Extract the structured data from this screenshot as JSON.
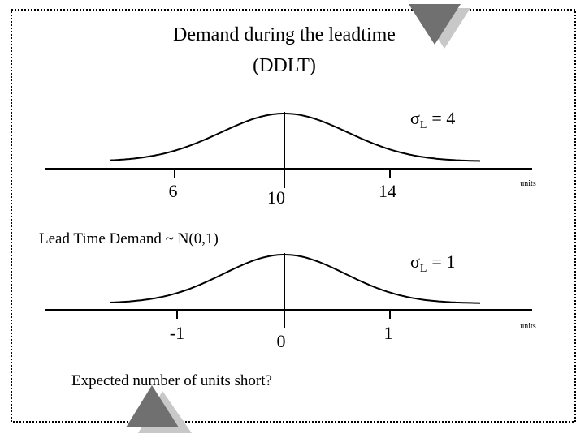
{
  "header": {
    "title": "Demand during the leadtime",
    "subtitle": "(DDLT)"
  },
  "panels": [
    {
      "sigma_symbol": "σ",
      "sigma_subscript": "L",
      "sigma_value": "= 4",
      "ticks": [
        "6",
        "10",
        "14"
      ],
      "units": "units"
    },
    {
      "sigma_symbol": "σ",
      "sigma_subscript": "L",
      "sigma_value": "= 1",
      "ticks": [
        "-1",
        "0",
        "1"
      ],
      "units": "units"
    }
  ],
  "middle_label": "Lead Time Demand  ~ N(0,1)",
  "footer": "Expected number of units short?"
}
